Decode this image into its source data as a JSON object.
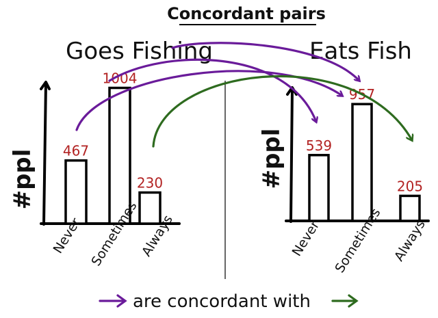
{
  "title": "Concordant pairs",
  "legend_text": "are concordant with",
  "colors": {
    "ink": "#111111",
    "value_red": "#b22222",
    "purple": "#6a1b9a",
    "green": "#2e6b1f"
  },
  "chart_data": [
    {
      "type": "bar",
      "title": "Goes Fishing",
      "ylabel": "#ppl",
      "categories": [
        "Never",
        "Sometimes",
        "Always"
      ],
      "values": [
        467,
        1004,
        230
      ],
      "ylim": [
        0,
        1300
      ],
      "grid": false
    },
    {
      "type": "bar",
      "title": "Eats Fish",
      "ylabel": "#ppl",
      "categories": [
        "Never",
        "Sometimes",
        "Always"
      ],
      "values": [
        539,
        957,
        205
      ],
      "ylim": [
        0,
        1300
      ],
      "grid": false
    }
  ],
  "arrows": [
    {
      "from_chart": 0,
      "from_category": "Never",
      "to_chart": 1,
      "to_category": "Sometimes",
      "color": "purple"
    },
    {
      "from_chart": 0,
      "from_category": "Sometimes",
      "to_chart": 1,
      "to_category": "Never",
      "color": "purple"
    },
    {
      "from_chart": 0,
      "from_category": "Goes Fishing",
      "to_chart": 1,
      "to_category": "Sometimes",
      "color": "purple"
    },
    {
      "from_chart": 0,
      "from_category": "Always",
      "to_chart": 1,
      "to_category": "Always",
      "color": "green"
    }
  ]
}
